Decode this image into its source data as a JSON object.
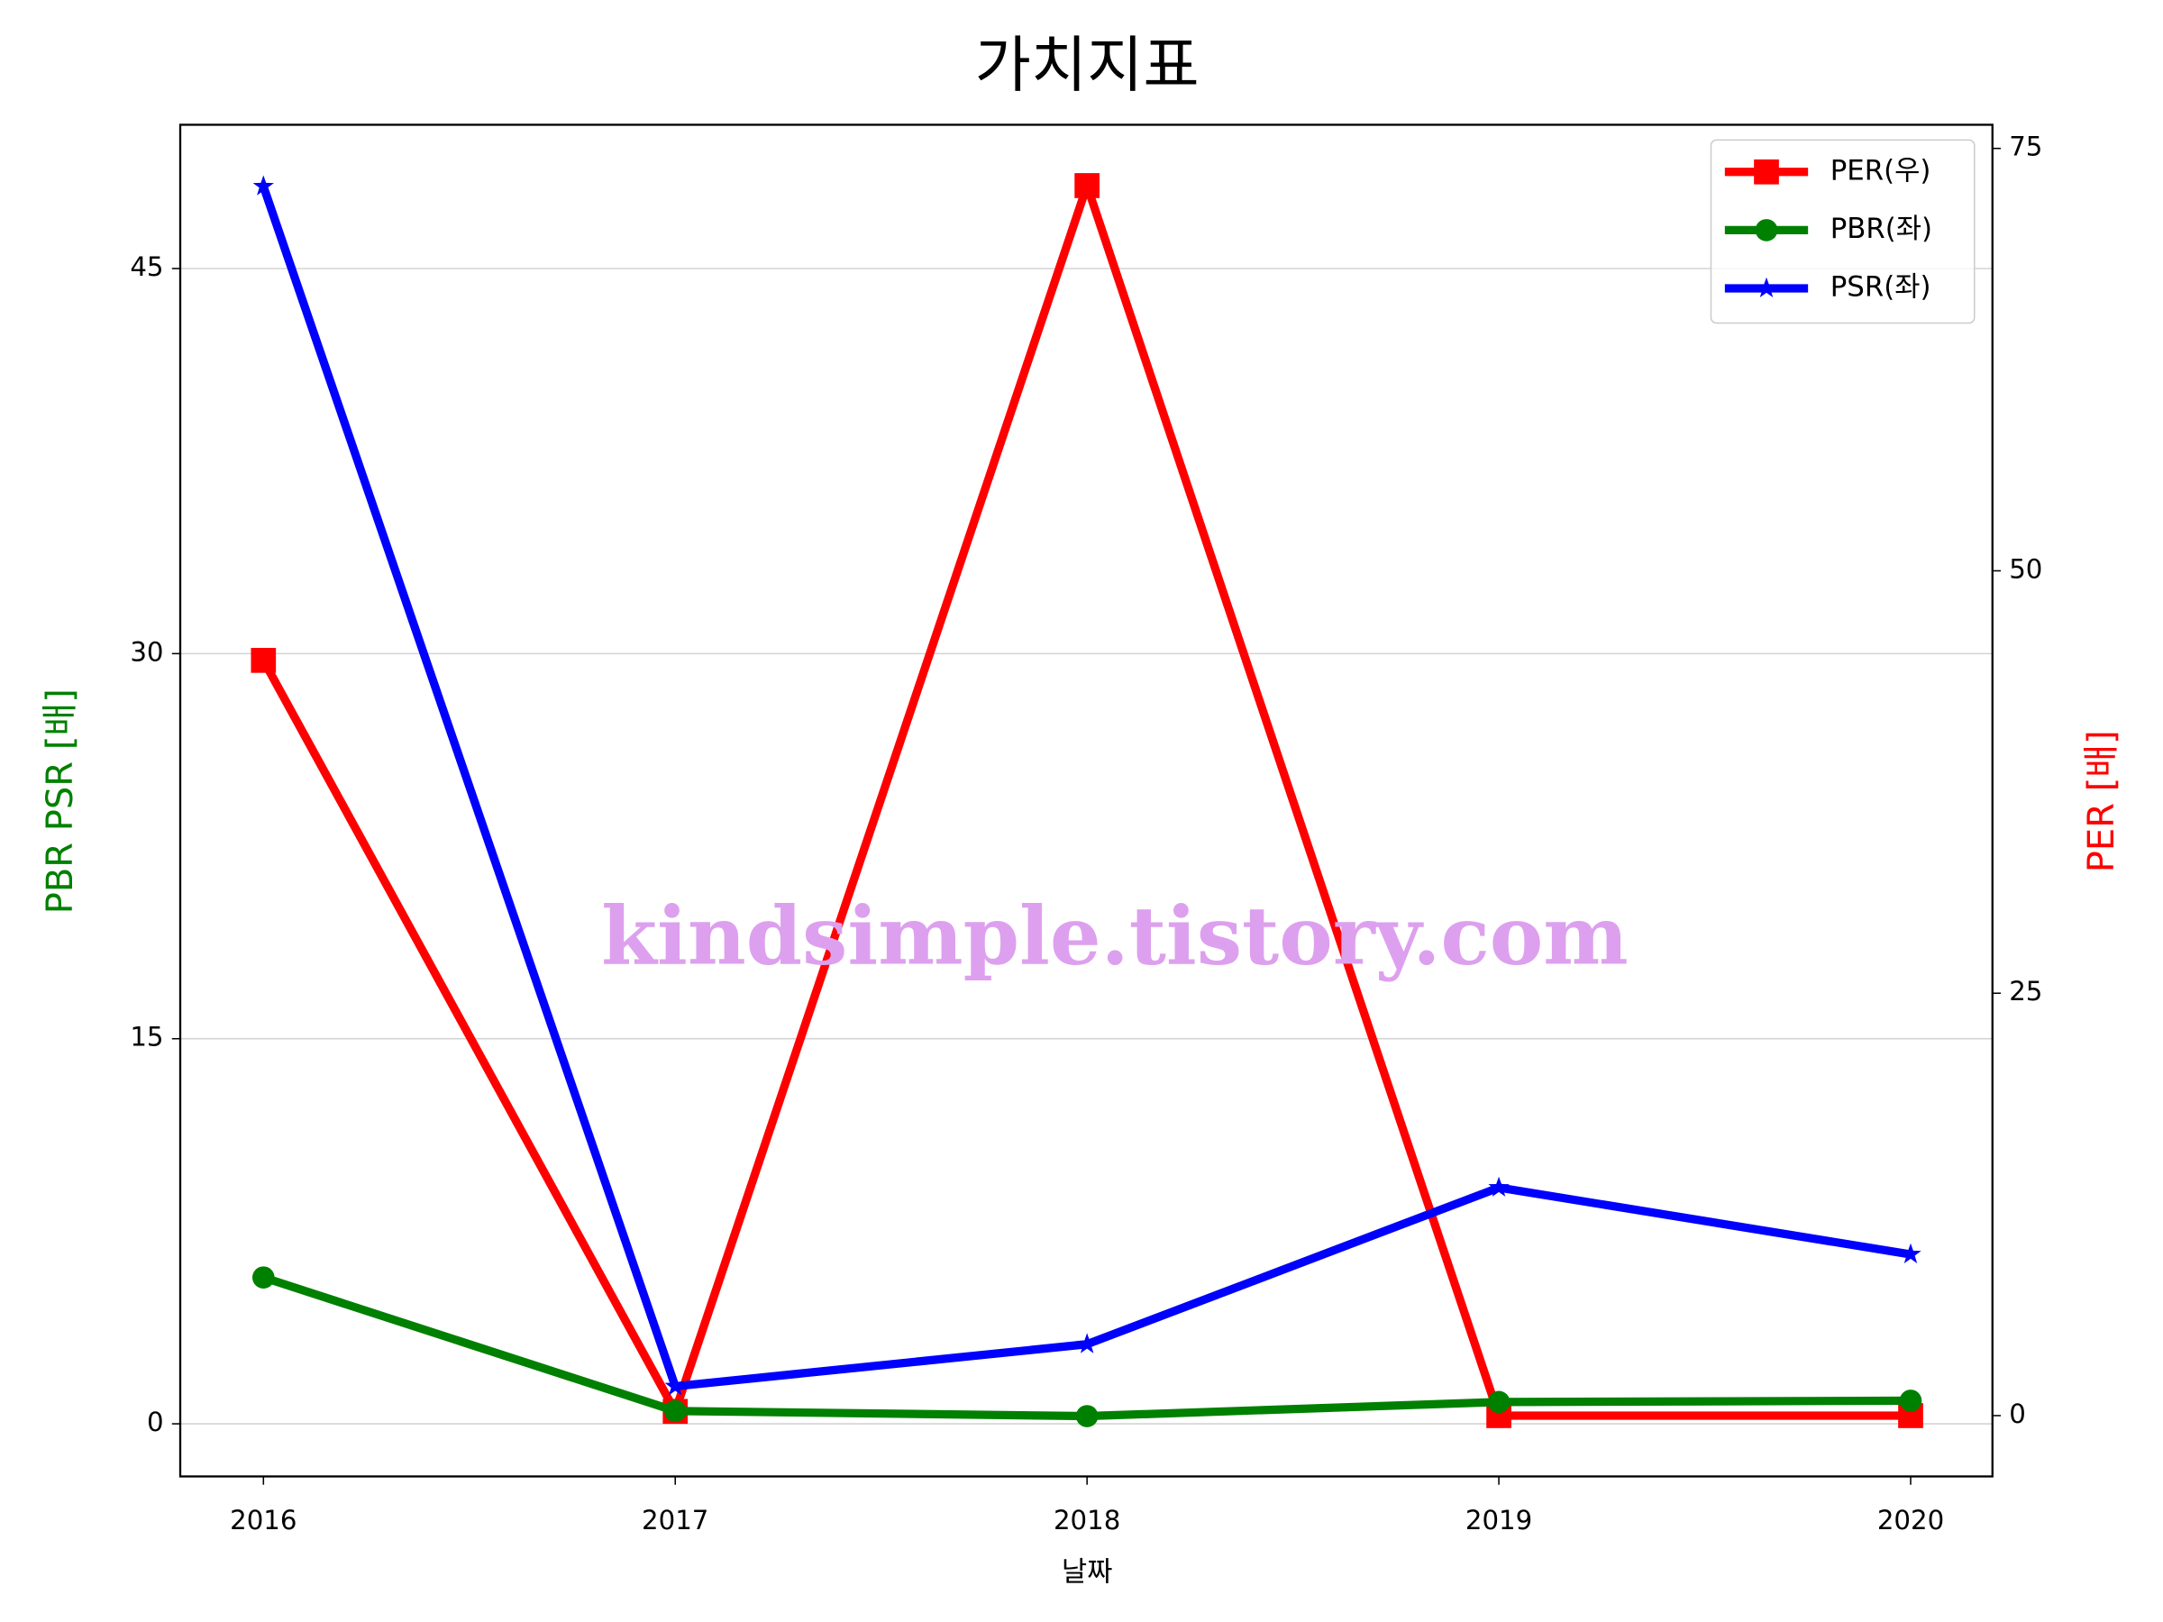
{
  "chart_data": {
    "type": "line",
    "title": "가치지표",
    "x_label": "날짜",
    "y_label": "PBR PSR [배]",
    "y2_label": "PER [배]",
    "categories": [
      "2016",
      "2017",
      "2018",
      "2019",
      "2020"
    ],
    "series": [
      {
        "name": "PER(우)",
        "color": "#ff0000",
        "marker": "square",
        "axis": "y2",
        "values": [
          44.7,
          0.25,
          72.8,
          0,
          0
        ]
      },
      {
        "name": "PBR(좌)",
        "color": "#008000",
        "marker": "circle",
        "values": [
          5.7,
          0.5,
          0.3,
          0.85,
          0.9
        ]
      },
      {
        "name": "PSR(좌)",
        "color": "#0000ff",
        "marker": "star",
        "values": [
          48.2,
          1.46,
          3.1,
          9.2,
          6.6
        ]
      }
    ],
    "ylim": [
      -2.05,
      50.6
    ],
    "yticks": [
      0,
      15,
      30,
      45
    ],
    "y2lim": [
      -3.6,
      76.4
    ],
    "y2ticks": [
      0,
      25,
      50,
      75
    ],
    "grid": true,
    "legend": "upper right",
    "annotation": "kindsimple.tistory.com"
  }
}
